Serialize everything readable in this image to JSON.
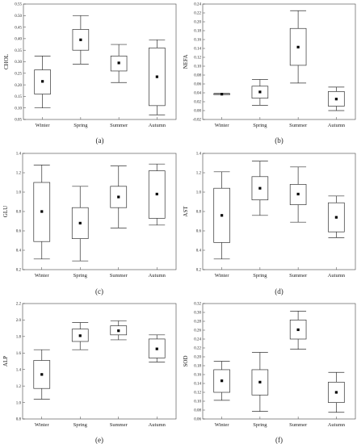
{
  "chart_data": [
    {
      "type": "box",
      "panel_label": "(a)",
      "ylabel": "CHOL",
      "categories": [
        "Winter",
        "Spring",
        "Summer",
        "Autumn"
      ],
      "ylim": [
        0.05,
        0.55
      ],
      "yticks": [
        "0.05",
        "0.10",
        "0.15",
        "0.20",
        "0.25",
        "0.30",
        "0.35",
        "0.40",
        "0.45",
        "0.50",
        "0.55"
      ],
      "boxes": [
        {
          "min": 0.1,
          "q1": 0.16,
          "mean": 0.215,
          "q3": 0.265,
          "max": 0.325
        },
        {
          "min": 0.29,
          "q1": 0.35,
          "mean": 0.395,
          "q3": 0.44,
          "max": 0.5
        },
        {
          "min": 0.21,
          "q1": 0.26,
          "mean": 0.295,
          "q3": 0.325,
          "max": 0.375
        },
        {
          "min": 0.07,
          "q1": 0.11,
          "mean": 0.235,
          "q3": 0.36,
          "max": 0.395
        }
      ]
    },
    {
      "type": "box",
      "panel_label": "(b)",
      "ylabel": "NEFA",
      "categories": [
        "Winter",
        "Spring",
        "Summer",
        "Autumn"
      ],
      "ylim": [
        -0.02,
        0.24
      ],
      "yticks": [
        "-0.02",
        "0.00",
        "0.02",
        "0.04",
        "0.06",
        "0.08",
        "0.10",
        "0.12",
        "0.14",
        "0.16",
        "0.18",
        "0.20",
        "0.22",
        "0.24"
      ],
      "boxes": [
        {
          "min": 0.036,
          "q1": 0.036,
          "mean": 0.037,
          "q3": 0.038,
          "max": 0.039
        },
        {
          "min": 0.012,
          "q1": 0.028,
          "mean": 0.042,
          "q3": 0.055,
          "max": 0.07
        },
        {
          "min": 0.062,
          "q1": 0.102,
          "mean": 0.143,
          "q3": 0.185,
          "max": 0.225
        },
        {
          "min": 0.0,
          "q1": 0.01,
          "mean": 0.026,
          "q3": 0.043,
          "max": 0.053
        }
      ]
    },
    {
      "type": "box",
      "panel_label": "(c)",
      "ylabel": "GLU",
      "categories": [
        "Winter",
        "Spring",
        "Summer",
        "Autumn"
      ],
      "ylim": [
        0.2,
        1.4
      ],
      "yticks": [
        "0.2",
        "0.4",
        "0.6",
        "0.8",
        "1.0",
        "1.2",
        "1.4"
      ],
      "boxes": [
        {
          "min": 0.31,
          "q1": 0.49,
          "mean": 0.8,
          "q3": 1.1,
          "max": 1.28
        },
        {
          "min": 0.29,
          "q1": 0.52,
          "mean": 0.68,
          "q3": 0.84,
          "max": 1.06
        },
        {
          "min": 0.63,
          "q1": 0.84,
          "mean": 0.95,
          "q3": 1.06,
          "max": 1.27
        },
        {
          "min": 0.66,
          "q1": 0.73,
          "mean": 0.98,
          "q3": 1.22,
          "max": 1.29
        }
      ]
    },
    {
      "type": "box",
      "panel_label": "(d)",
      "ylabel": "AST",
      "categories": [
        "Winter",
        "Spring",
        "Summer",
        "Autumn"
      ],
      "ylim": [
        0.2,
        1.4
      ],
      "yticks": [
        "0.2",
        "0.4",
        "0.6",
        "0.8",
        "1.0",
        "1.2",
        "1.4"
      ],
      "boxes": [
        {
          "min": 0.31,
          "q1": 0.48,
          "mean": 0.76,
          "q3": 1.04,
          "max": 1.21
        },
        {
          "min": 0.76,
          "q1": 0.92,
          "mean": 1.04,
          "q3": 1.16,
          "max": 1.32
        },
        {
          "min": 0.69,
          "q1": 0.87,
          "mean": 0.98,
          "q3": 1.08,
          "max": 1.26
        },
        {
          "min": 0.53,
          "q1": 0.59,
          "mean": 0.74,
          "q3": 0.89,
          "max": 0.96
        }
      ]
    },
    {
      "type": "box",
      "panel_label": "(e)",
      "ylabel": "ALP",
      "categories": [
        "Winter",
        "Spring",
        "Summer",
        "Autumn"
      ],
      "ylim": [
        0.8,
        2.2
      ],
      "yticks": [
        "0.8",
        "1.0",
        "1.2",
        "1.4",
        "1.6",
        "1.8",
        "2.0",
        "2.2"
      ],
      "boxes": [
        {
          "min": 1.04,
          "q1": 1.17,
          "mean": 1.34,
          "q3": 1.51,
          "max": 1.64
        },
        {
          "min": 1.64,
          "q1": 1.74,
          "mean": 1.81,
          "q3": 1.89,
          "max": 1.97
        },
        {
          "min": 1.76,
          "q1": 1.82,
          "mean": 1.87,
          "q3": 1.93,
          "max": 1.99
        },
        {
          "min": 1.49,
          "q1": 1.54,
          "mean": 1.65,
          "q3": 1.77,
          "max": 1.82
        }
      ]
    },
    {
      "type": "box",
      "panel_label": "(f)",
      "ylabel": "SOD",
      "categories": [
        "Winter",
        "Spring",
        "Summer",
        "Autumn"
      ],
      "ylim": [
        0.06,
        0.32
      ],
      "yticks": [
        "0.06",
        "0.08",
        "0.10",
        "0.12",
        "0.14",
        "0.16",
        "0.18",
        "0.20",
        "0.22",
        "0.24",
        "0.26",
        "0.28",
        "0.30",
        "0.32"
      ],
      "boxes": [
        {
          "min": 0.102,
          "q1": 0.12,
          "mean": 0.146,
          "q3": 0.171,
          "max": 0.19
        },
        {
          "min": 0.077,
          "q1": 0.114,
          "mean": 0.143,
          "q3": 0.171,
          "max": 0.21
        },
        {
          "min": 0.217,
          "q1": 0.24,
          "mean": 0.261,
          "q3": 0.283,
          "max": 0.303
        },
        {
          "min": 0.075,
          "q1": 0.097,
          "mean": 0.12,
          "q3": 0.143,
          "max": 0.165
        }
      ]
    }
  ]
}
